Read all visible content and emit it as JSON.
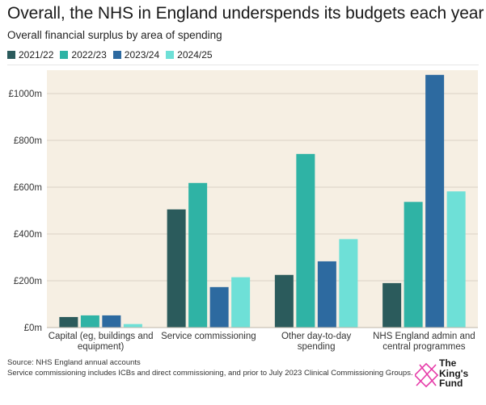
{
  "title": "Overall, the NHS in England underspends its budgets each year",
  "subtitle": "Overall financial surplus by area of spending",
  "legend": [
    {
      "label": "2021/22",
      "color": "#2b5b5c"
    },
    {
      "label": "2022/23",
      "color": "#2fb3a5"
    },
    {
      "label": "2023/24",
      "color": "#2d6aa0"
    },
    {
      "label": "2024/25",
      "color": "#6ee0d7"
    }
  ],
  "colors": {
    "plot_background": "#f6efe3",
    "gridline": "#d9d2c6",
    "logo_accent": "#e63aa8"
  },
  "chart_data": {
    "type": "bar",
    "categories": [
      [
        "Capital (eg, buildings and",
        "equipment)"
      ],
      [
        "Service commissioning"
      ],
      [
        "Other day-to-day",
        "spending"
      ],
      [
        "NHS England admin and",
        "central programmes"
      ]
    ],
    "series": [
      {
        "name": "2021/22",
        "color": "#2b5b5c",
        "values": [
          45,
          505,
          225,
          190
        ]
      },
      {
        "name": "2022/23",
        "color": "#2fb3a5",
        "values": [
          52,
          618,
          742,
          537
        ]
      },
      {
        "name": "2023/24",
        "color": "#2d6aa0",
        "values": [
          52,
          173,
          283,
          1080
        ]
      },
      {
        "name": "2024/25",
        "color": "#6ee0d7",
        "values": [
          15,
          215,
          378,
          582
        ]
      }
    ],
    "ylim": [
      0,
      1100
    ],
    "yticks": [
      0,
      200,
      400,
      600,
      800,
      1000
    ],
    "ytick_labels": [
      "£0m",
      "£200m",
      "£400m",
      "£600m",
      "£800m",
      "£1000m"
    ],
    "grid": true,
    "legend_position": "top-left"
  },
  "footer": {
    "source": "Source: NHS England annual accounts",
    "note": "Service commissioning includes ICBs and direct commissioning, and prior to July 2023 Clinical Commissioning Groups."
  },
  "logo": {
    "line1": "The",
    "line2": "King's",
    "line3": "Fund"
  }
}
